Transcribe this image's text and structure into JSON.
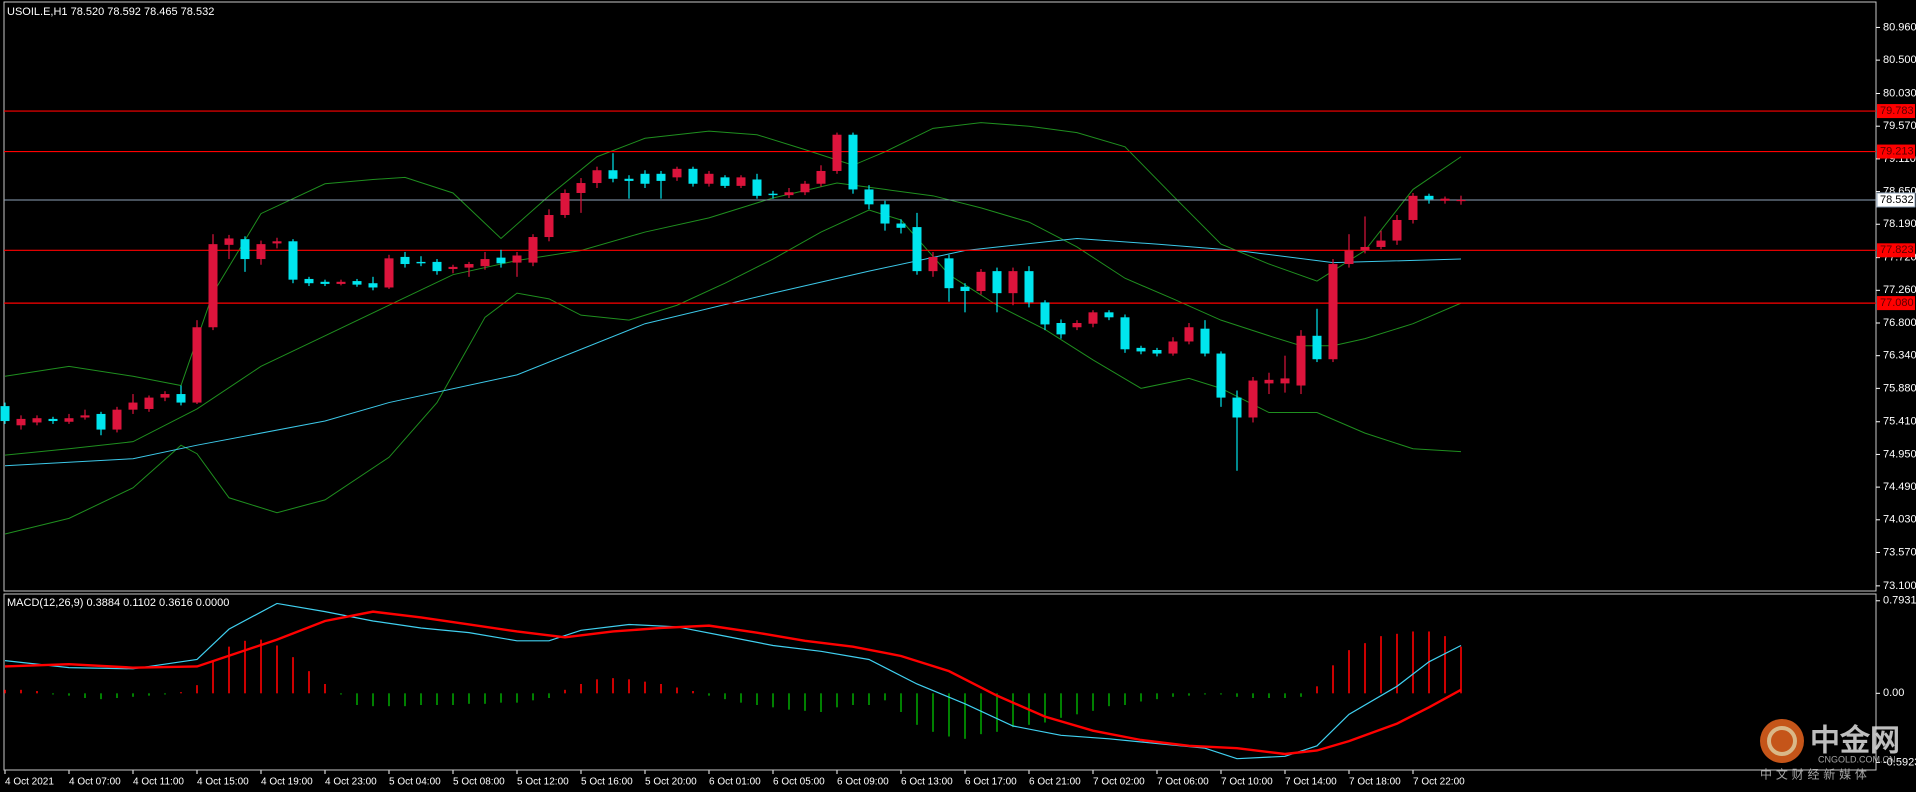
{
  "chart_data": [
    {
      "type": "candlestick",
      "title": "USOIL.E,H1  78.520 78.592 78.465 78.532",
      "categories": [
        "4 Oct 2021",
        null,
        null,
        null,
        "4 Oct 07:00",
        null,
        null,
        null,
        "4 Oct 11:00",
        null,
        null,
        null,
        "4 Oct 15:00",
        null,
        null,
        null,
        "4 Oct 19:00",
        null,
        null,
        null,
        "4 Oct 23:00",
        null,
        null,
        null,
        "5 Oct 04:00",
        null,
        null,
        null,
        "5 Oct 08:00",
        null,
        null,
        null,
        "5 Oct 12:00",
        null,
        null,
        null,
        "5 Oct 16:00",
        null,
        null,
        null,
        "5 Oct 20:00",
        null,
        null,
        null,
        "6 Oct 01:00",
        null,
        null,
        null,
        "6 Oct 05:00",
        null,
        null,
        null,
        "6 Oct 09:00",
        null,
        null,
        null,
        "6 Oct 13:00",
        null,
        null,
        null,
        "6 Oct 17:00",
        null,
        null,
        null,
        "6 Oct 21:00",
        null,
        null,
        null,
        "7 Oct 02:00",
        null,
        null,
        null,
        "7 Oct 06:00",
        null,
        null,
        null,
        "7 Oct 10:00",
        null,
        null,
        null,
        "7 Oct 14:00",
        null,
        null,
        null,
        "7 Oct 18:00",
        null,
        null,
        null,
        "7 Oct 22:00",
        null,
        null,
        null
      ],
      "open": [
        75.63,
        75.36,
        75.4,
        75.45,
        75.41,
        75.47,
        75.52,
        75.3,
        75.58,
        75.59,
        75.75,
        75.8,
        75.68,
        76.74,
        77.9,
        77.98,
        77.7,
        77.92,
        77.95,
        77.42,
        77.38,
        77.35,
        77.39,
        77.36,
        77.3,
        77.73,
        77.66,
        77.66,
        77.56,
        77.58,
        77.6,
        77.72,
        77.65,
        77.65,
        78.01,
        78.32,
        78.63,
        78.77,
        78.95,
        78.83,
        78.9,
        78.9,
        78.85,
        78.97,
        78.76,
        78.85,
        78.73,
        78.82,
        78.62,
        78.6,
        78.64,
        78.76,
        78.94,
        79.45,
        78.68,
        78.47,
        78.2,
        78.15,
        77.53,
        77.71,
        77.31,
        77.25,
        77.53,
        77.22,
        77.53,
        77.09,
        76.8,
        76.74,
        76.79,
        76.95,
        76.88,
        76.45,
        76.42,
        76.37,
        76.54,
        76.72,
        76.37,
        75.75,
        75.47,
        75.95,
        75.95,
        75.92,
        76.62,
        76.29,
        77.63,
        77.82,
        77.87,
        77.96,
        78.25,
        78.59,
        78.52,
        78.52
      ],
      "high": [
        75.68,
        75.5,
        75.5,
        75.48,
        75.52,
        75.58,
        75.55,
        75.62,
        75.8,
        75.78,
        75.84,
        75.92,
        76.84,
        78.05,
        78.04,
        78.02,
        77.96,
        78.0,
        77.98,
        77.45,
        77.41,
        77.41,
        77.42,
        77.45,
        77.76,
        77.8,
        77.74,
        77.7,
        77.62,
        77.66,
        77.8,
        77.83,
        77.8,
        78.05,
        78.4,
        78.68,
        78.84,
        79.0,
        79.19,
        78.88,
        78.95,
        78.94,
        79.0,
        79.0,
        78.94,
        78.88,
        78.88,
        78.9,
        78.66,
        78.7,
        78.8,
        79.02,
        79.48,
        79.48,
        78.74,
        78.52,
        78.26,
        78.35,
        77.8,
        77.76,
        77.36,
        77.56,
        77.58,
        77.58,
        77.6,
        77.12,
        76.85,
        76.84,
        76.98,
        76.98,
        76.92,
        76.48,
        76.45,
        76.6,
        76.8,
        76.84,
        76.4,
        75.85,
        76.04,
        76.1,
        76.34,
        76.7,
        77.0,
        77.7,
        78.05,
        78.3,
        78.1,
        78.32,
        78.63,
        78.62,
        78.58,
        78.592
      ],
      "low": [
        75.38,
        75.3,
        75.36,
        75.38,
        75.38,
        75.44,
        75.22,
        75.26,
        75.52,
        75.55,
        75.7,
        75.64,
        75.66,
        76.7,
        77.7,
        77.52,
        77.62,
        77.85,
        77.36,
        77.32,
        77.32,
        77.33,
        77.31,
        77.26,
        77.28,
        77.58,
        77.6,
        77.48,
        77.5,
        77.45,
        77.55,
        77.58,
        77.45,
        77.6,
        77.95,
        78.28,
        78.35,
        78.7,
        78.78,
        78.55,
        78.7,
        78.55,
        78.8,
        78.72,
        78.72,
        78.7,
        78.7,
        78.55,
        78.55,
        78.56,
        78.6,
        78.72,
        78.9,
        78.62,
        78.4,
        78.1,
        78.06,
        77.48,
        77.45,
        77.1,
        76.95,
        77.2,
        76.95,
        77.05,
        77.02,
        76.7,
        76.58,
        76.7,
        76.74,
        76.84,
        76.38,
        76.36,
        76.33,
        76.34,
        76.5,
        76.33,
        75.62,
        74.72,
        75.4,
        75.8,
        75.82,
        75.8,
        76.25,
        76.25,
        77.58,
        77.78,
        77.84,
        77.9,
        78.2,
        78.48,
        78.48,
        78.465
      ],
      "close": [
        75.42,
        75.45,
        75.46,
        75.42,
        75.46,
        75.5,
        75.3,
        75.58,
        75.68,
        75.75,
        75.8,
        75.68,
        76.74,
        77.91,
        77.99,
        77.7,
        77.91,
        77.95,
        77.41,
        77.36,
        77.35,
        77.38,
        77.34,
        77.3,
        77.71,
        77.63,
        77.64,
        77.53,
        77.59,
        77.63,
        77.7,
        77.64,
        77.75,
        78.01,
        78.32,
        78.63,
        78.77,
        78.95,
        78.83,
        78.8,
        78.76,
        78.8,
        78.97,
        78.76,
        78.9,
        78.73,
        78.85,
        78.59,
        78.6,
        78.64,
        78.76,
        78.94,
        79.45,
        78.68,
        78.47,
        78.2,
        78.14,
        77.53,
        77.73,
        77.29,
        77.25,
        77.52,
        77.22,
        77.53,
        77.09,
        76.78,
        76.64,
        76.8,
        76.95,
        76.88,
        76.43,
        76.4,
        76.37,
        76.54,
        76.74,
        76.37,
        75.75,
        75.47,
        75.99,
        76.0,
        76.02,
        76.62,
        76.29,
        77.63,
        77.82,
        77.87,
        77.96,
        78.25,
        78.59,
        78.54,
        78.55,
        78.532
      ],
      "up_color": "#dc143c",
      "down_color": "#00e5ee",
      "ylim": [
        73.07,
        81.29
      ],
      "yticks": [
        {
          "value": 80.96,
          "label": "80.960"
        },
        {
          "value": 80.5,
          "label": "80.500"
        },
        {
          "value": 80.03,
          "label": "80.030"
        },
        {
          "value": 79.57,
          "label": "79.570"
        },
        {
          "value": 79.11,
          "label": "79.110"
        },
        {
          "value": 78.65,
          "label": "78.650"
        },
        {
          "value": 78.19,
          "label": "78.190"
        },
        {
          "value": 77.72,
          "label": "77.720"
        },
        {
          "value": 77.26,
          "label": "77.260"
        },
        {
          "value": 76.8,
          "label": "76.800"
        },
        {
          "value": 76.34,
          "label": "76.340"
        },
        {
          "value": 75.88,
          "label": "75.880"
        },
        {
          "value": 75.41,
          "label": "75.410"
        },
        {
          "value": 74.95,
          "label": "74.950"
        },
        {
          "value": 74.49,
          "label": "74.490"
        },
        {
          "value": 74.03,
          "label": "74.030"
        },
        {
          "value": 73.57,
          "label": "73.570"
        },
        {
          "value": 73.1,
          "label": "73.100"
        }
      ],
      "hlines": [
        79.783,
        79.213,
        77.823,
        {
          "value": 77.08,
          "label": "77.080"
        }
      ],
      "hline_color": "#ff0000",
      "price_line": 78.532,
      "price_line_color": "#8ea2b8",
      "lines": [
        {
          "color": "#1f8f1f",
          "x": [
            0,
            4,
            8,
            11,
            13,
            16,
            20,
            23,
            25,
            28,
            31,
            34,
            37,
            40,
            44,
            47,
            50,
            53,
            55,
            58,
            61,
            64,
            67,
            70,
            73,
            76,
            79,
            82,
            85,
            88,
            91
          ],
          "values": [
            76.05,
            76.19,
            76.05,
            75.92,
            77.22,
            78.34,
            78.76,
            78.82,
            78.85,
            78.63,
            77.99,
            78.59,
            79.14,
            79.4,
            79.5,
            79.45,
            79.24,
            79.02,
            79.21,
            79.54,
            79.62,
            79.57,
            79.48,
            79.28,
            78.59,
            77.91,
            77.63,
            77.39,
            77.82,
            78.68,
            79.14
          ]
        },
        {
          "color": "#1f8f1f",
          "x": [
            0,
            4,
            8,
            12,
            16,
            20,
            24,
            28,
            32,
            36,
            40,
            44,
            48,
            52,
            55,
            58,
            61,
            64,
            67,
            70,
            73,
            76,
            79,
            81,
            83,
            85,
            88,
            91
          ],
          "values": [
            74.94,
            75.03,
            75.13,
            75.59,
            76.19,
            76.62,
            77.05,
            77.48,
            77.68,
            77.82,
            78.08,
            78.28,
            78.56,
            78.77,
            78.68,
            78.59,
            78.42,
            78.22,
            77.87,
            77.43,
            77.14,
            76.84,
            76.62,
            76.48,
            76.48,
            76.58,
            76.79,
            77.08
          ]
        },
        {
          "color": "#1f8f1f",
          "x": [
            0,
            4,
            8,
            11,
            12,
            14,
            17,
            20,
            24,
            27,
            30,
            32,
            34,
            36,
            39,
            42,
            45,
            48,
            51,
            54,
            56,
            59,
            62,
            65,
            68,
            71,
            74,
            76,
            79,
            82,
            85,
            88,
            91
          ],
          "values": [
            73.83,
            74.05,
            74.48,
            75.08,
            74.96,
            74.34,
            74.13,
            74.31,
            74.91,
            75.68,
            76.88,
            77.22,
            77.14,
            76.91,
            76.84,
            77.05,
            77.36,
            77.7,
            78.08,
            78.39,
            78.25,
            77.48,
            77.05,
            76.71,
            76.28,
            75.88,
            76.02,
            75.88,
            75.54,
            75.54,
            75.25,
            75.03,
            74.99
          ]
        },
        {
          "color": "#3cc8e8",
          "x": [
            0,
            8,
            12,
            20,
            24,
            32,
            40,
            48,
            54,
            60,
            67,
            72,
            77,
            83,
            91
          ],
          "values": [
            74.79,
            74.89,
            75.08,
            75.42,
            75.68,
            76.07,
            76.79,
            77.22,
            77.53,
            77.82,
            77.99,
            77.91,
            77.82,
            77.65,
            77.7
          ]
        }
      ]
    },
    {
      "type": "macd",
      "title": "MACD(12,26,9) 0.3884 0.1102 0.3616 0.0000",
      "ylim": [
        -0.64,
        0.834
      ],
      "yticks": [
        0.7931,
        {
          "value": 0,
          "label": "0.00"
        },
        -0.5923
      ],
      "histogram": [
        0.03,
        0.03,
        0.02,
        -0.01,
        -0.02,
        -0.04,
        -0.05,
        -0.04,
        -0.03,
        -0.02,
        -0.01,
        0.01,
        0.07,
        0.27,
        0.4,
        0.45,
        0.46,
        0.41,
        0.31,
        0.19,
        0.08,
        -0.01,
        -0.1,
        -0.11,
        -0.11,
        -0.11,
        -0.1,
        -0.1,
        -0.1,
        -0.09,
        -0.09,
        -0.08,
        -0.08,
        -0.06,
        -0.04,
        0.03,
        0.08,
        0.12,
        0.13,
        0.12,
        0.1,
        0.08,
        0.05,
        0.02,
        -0.02,
        -0.05,
        -0.08,
        -0.1,
        -0.12,
        -0.14,
        -0.15,
        -0.16,
        -0.12,
        -0.1,
        -0.1,
        -0.06,
        -0.16,
        -0.27,
        -0.33,
        -0.37,
        -0.39,
        -0.35,
        -0.33,
        -0.29,
        -0.27,
        -0.25,
        -0.21,
        -0.18,
        -0.15,
        -0.11,
        -0.1,
        -0.07,
        -0.05,
        -0.03,
        -0.02,
        -0.01,
        -0.01,
        -0.03,
        -0.04,
        -0.04,
        -0.04,
        -0.03,
        0.06,
        0.24,
        0.37,
        0.43,
        0.49,
        0.51,
        0.53,
        0.53,
        0.49,
        0.4
      ],
      "positive_color": "#ff0000",
      "negative_color": "#00a000",
      "lines": [
        {
          "color": "#40d0f0",
          "width": 1.2,
          "x": [
            0,
            4,
            8,
            12,
            14,
            17,
            20,
            23,
            26,
            29,
            32,
            34,
            36,
            39,
            42,
            45,
            48,
            51,
            54,
            57,
            60,
            63,
            66,
            69,
            72,
            75,
            77,
            80,
            82,
            84,
            87,
            89,
            91
          ],
          "values": [
            0.28,
            0.22,
            0.21,
            0.29,
            0.55,
            0.77,
            0.7,
            0.62,
            0.56,
            0.52,
            0.45,
            0.45,
            0.54,
            0.59,
            0.57,
            0.49,
            0.41,
            0.36,
            0.29,
            0.08,
            -0.09,
            -0.28,
            -0.36,
            -0.39,
            -0.43,
            -0.47,
            -0.56,
            -0.54,
            -0.45,
            -0.18,
            0.06,
            0.27,
            0.41
          ]
        },
        {
          "color": "#ff0000",
          "width": 2.4,
          "x": [
            0,
            4,
            8,
            12,
            17,
            20,
            23,
            26,
            29,
            32,
            35,
            38,
            41,
            44,
            47,
            50,
            53,
            56,
            59,
            62,
            65,
            68,
            71,
            74,
            77,
            80,
            82,
            84,
            87,
            89,
            91
          ],
          "values": [
            0.23,
            0.25,
            0.22,
            0.23,
            0.46,
            0.62,
            0.7,
            0.65,
            0.59,
            0.53,
            0.48,
            0.53,
            0.56,
            0.58,
            0.52,
            0.45,
            0.4,
            0.32,
            0.19,
            -0.02,
            -0.2,
            -0.32,
            -0.4,
            -0.45,
            -0.47,
            -0.52,
            -0.49,
            -0.41,
            -0.26,
            -0.12,
            0.03
          ]
        }
      ]
    }
  ],
  "watermark": {
    "logo": "中金网",
    "site": "CNGOLD.COM.CN",
    "slogan": "中 文 财 经 新 媒 体"
  }
}
